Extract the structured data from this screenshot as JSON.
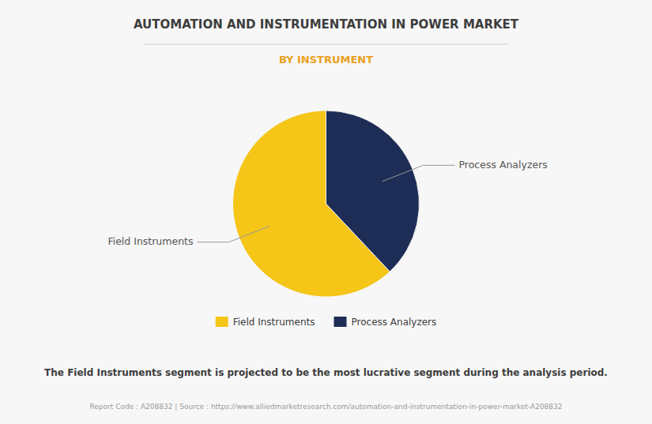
{
  "chart_data": {
    "type": "pie",
    "title": "AUTOMATION AND INSTRUMENTATION IN POWER MARKET",
    "subtitle": "BY INSTRUMENT",
    "categories": [
      "Field Instruments",
      "Process Analyzers"
    ],
    "values": [
      62,
      38
    ],
    "colors": [
      "#F5C518",
      "#1E2D55"
    ],
    "annotations": [
      "Process Analyzers",
      "Field Instruments"
    ],
    "legend": "bottom",
    "footer": "The Field Instruments segment is projected to be the most lucrative segment during the analysis period.",
    "source": "Report Code : A208832  |  Source : https://www.alliedmarketresearch.com/automation-and-instrumentation-in-power-market-A208832"
  }
}
